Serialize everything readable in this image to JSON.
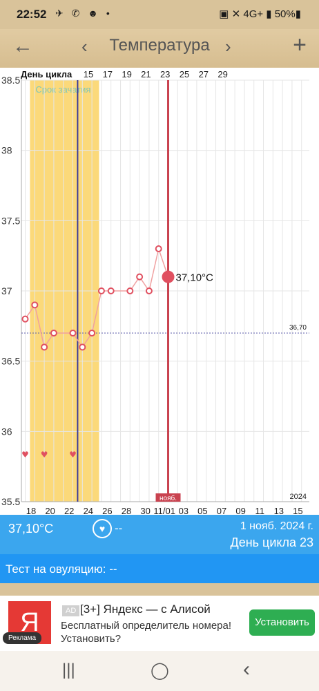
{
  "status": {
    "time": "22:52",
    "icons": "✈ ✆ ☻ •",
    "right": "▣ ✕ 4G+ ▮ 50%▮"
  },
  "toolbar": {
    "title": "Температура",
    "back": "←",
    "prev": "‹",
    "next": "›",
    "add": "+"
  },
  "chart_data": {
    "type": "line",
    "title": "",
    "top_label": "День цикла",
    "top_ticks": [
      "15",
      "17",
      "19",
      "21",
      "23",
      "25",
      "27",
      "29"
    ],
    "bottom_ticks": [
      "18",
      "20",
      "22",
      "24",
      "26",
      "28",
      "30",
      "11/01",
      "03",
      "05",
      "07",
      "09",
      "11",
      "13",
      "15"
    ],
    "month_marker": "нояб.",
    "year": "2024",
    "y_ticks": [
      "38.5",
      "38",
      "37.5",
      "37",
      "36.5",
      "36",
      "35.5"
    ],
    "ylim": [
      35.5,
      38.5
    ],
    "fertile_label": "Срок зачатия",
    "fertile_window": {
      "from": 17.5,
      "to": 24.75
    },
    "ovulation_line_day": 22.5,
    "selected_day": 32,
    "selected_label": "37,10°C",
    "coverline": {
      "value": 36.7,
      "label": "36,70"
    },
    "x": [
      17,
      18,
      19,
      20,
      22,
      23,
      24,
      25,
      26,
      28,
      29,
      30,
      31,
      32
    ],
    "values": [
      36.8,
      36.9,
      36.6,
      36.7,
      36.7,
      36.6,
      36.7,
      37.0,
      37.0,
      37.0,
      37.1,
      37.0,
      37.3,
      37.1
    ],
    "hearts_x": [
      17,
      19,
      22
    ],
    "colors": {
      "line": "#f0a0a0",
      "marker": "#e05060",
      "fertile": "#fbd97a",
      "ovulation": "#3a3a9a",
      "today": "#c9424f"
    }
  },
  "info": {
    "temp": "37,10°C",
    "heart_value": "--",
    "date": "1 нояб. 2024 г.",
    "cycle": "День цикла 23"
  },
  "ovulation_test": "Тест на овуляцию: --",
  "ad": {
    "badge": "AD",
    "logo": "Я",
    "title": "[3+] Яндекс — с Алисой",
    "desc": "Бесплатный определитель номера! Установить?",
    "button": "Установить",
    "reklama": "Реклама"
  },
  "nav": {
    "recent": "|||",
    "home": "◯",
    "back": "‹"
  }
}
